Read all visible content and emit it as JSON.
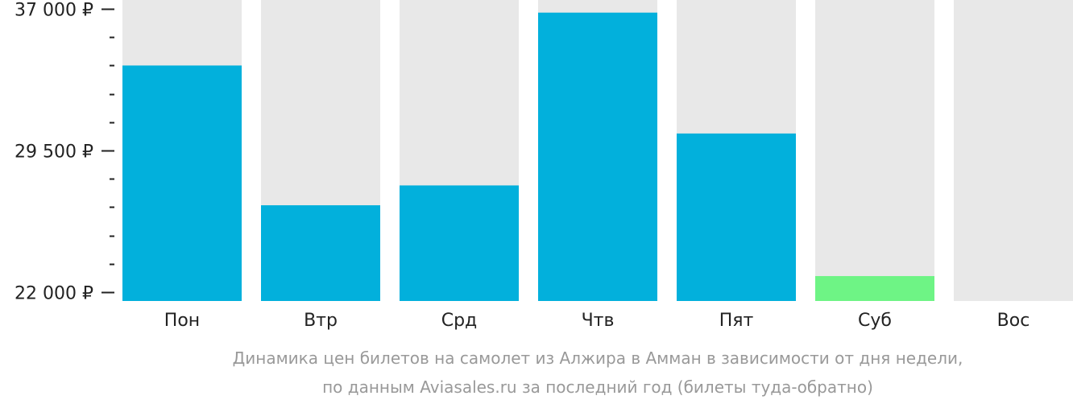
{
  "chart_data": {
    "type": "bar",
    "categories": [
      "Пон",
      "Втр",
      "Срд",
      "Чтв",
      "Пят",
      "Суб",
      "Вос"
    ],
    "values": [
      34000,
      26600,
      27650,
      36800,
      30400,
      22850,
      null
    ],
    "ylim": [
      22000,
      37000
    ],
    "yticks": [
      {
        "value": 22000,
        "label": "22 000 ₽"
      },
      {
        "value": 29500,
        "label": "29 500 ₽"
      },
      {
        "value": 37000,
        "label": "37 000 ₽"
      }
    ],
    "minor_tick_step": 1500,
    "bar_color": "#02b0dc",
    "lowest_bar_color": "#6ef485",
    "background_bar_color": "#e8e8e8",
    "caption": [
      "Динамика цен билетов на самолет из Алжира в Амман в зависимости от дня недели,",
      "по данным Aviasales.ru за последний год (билеты туда-обратно)"
    ]
  }
}
